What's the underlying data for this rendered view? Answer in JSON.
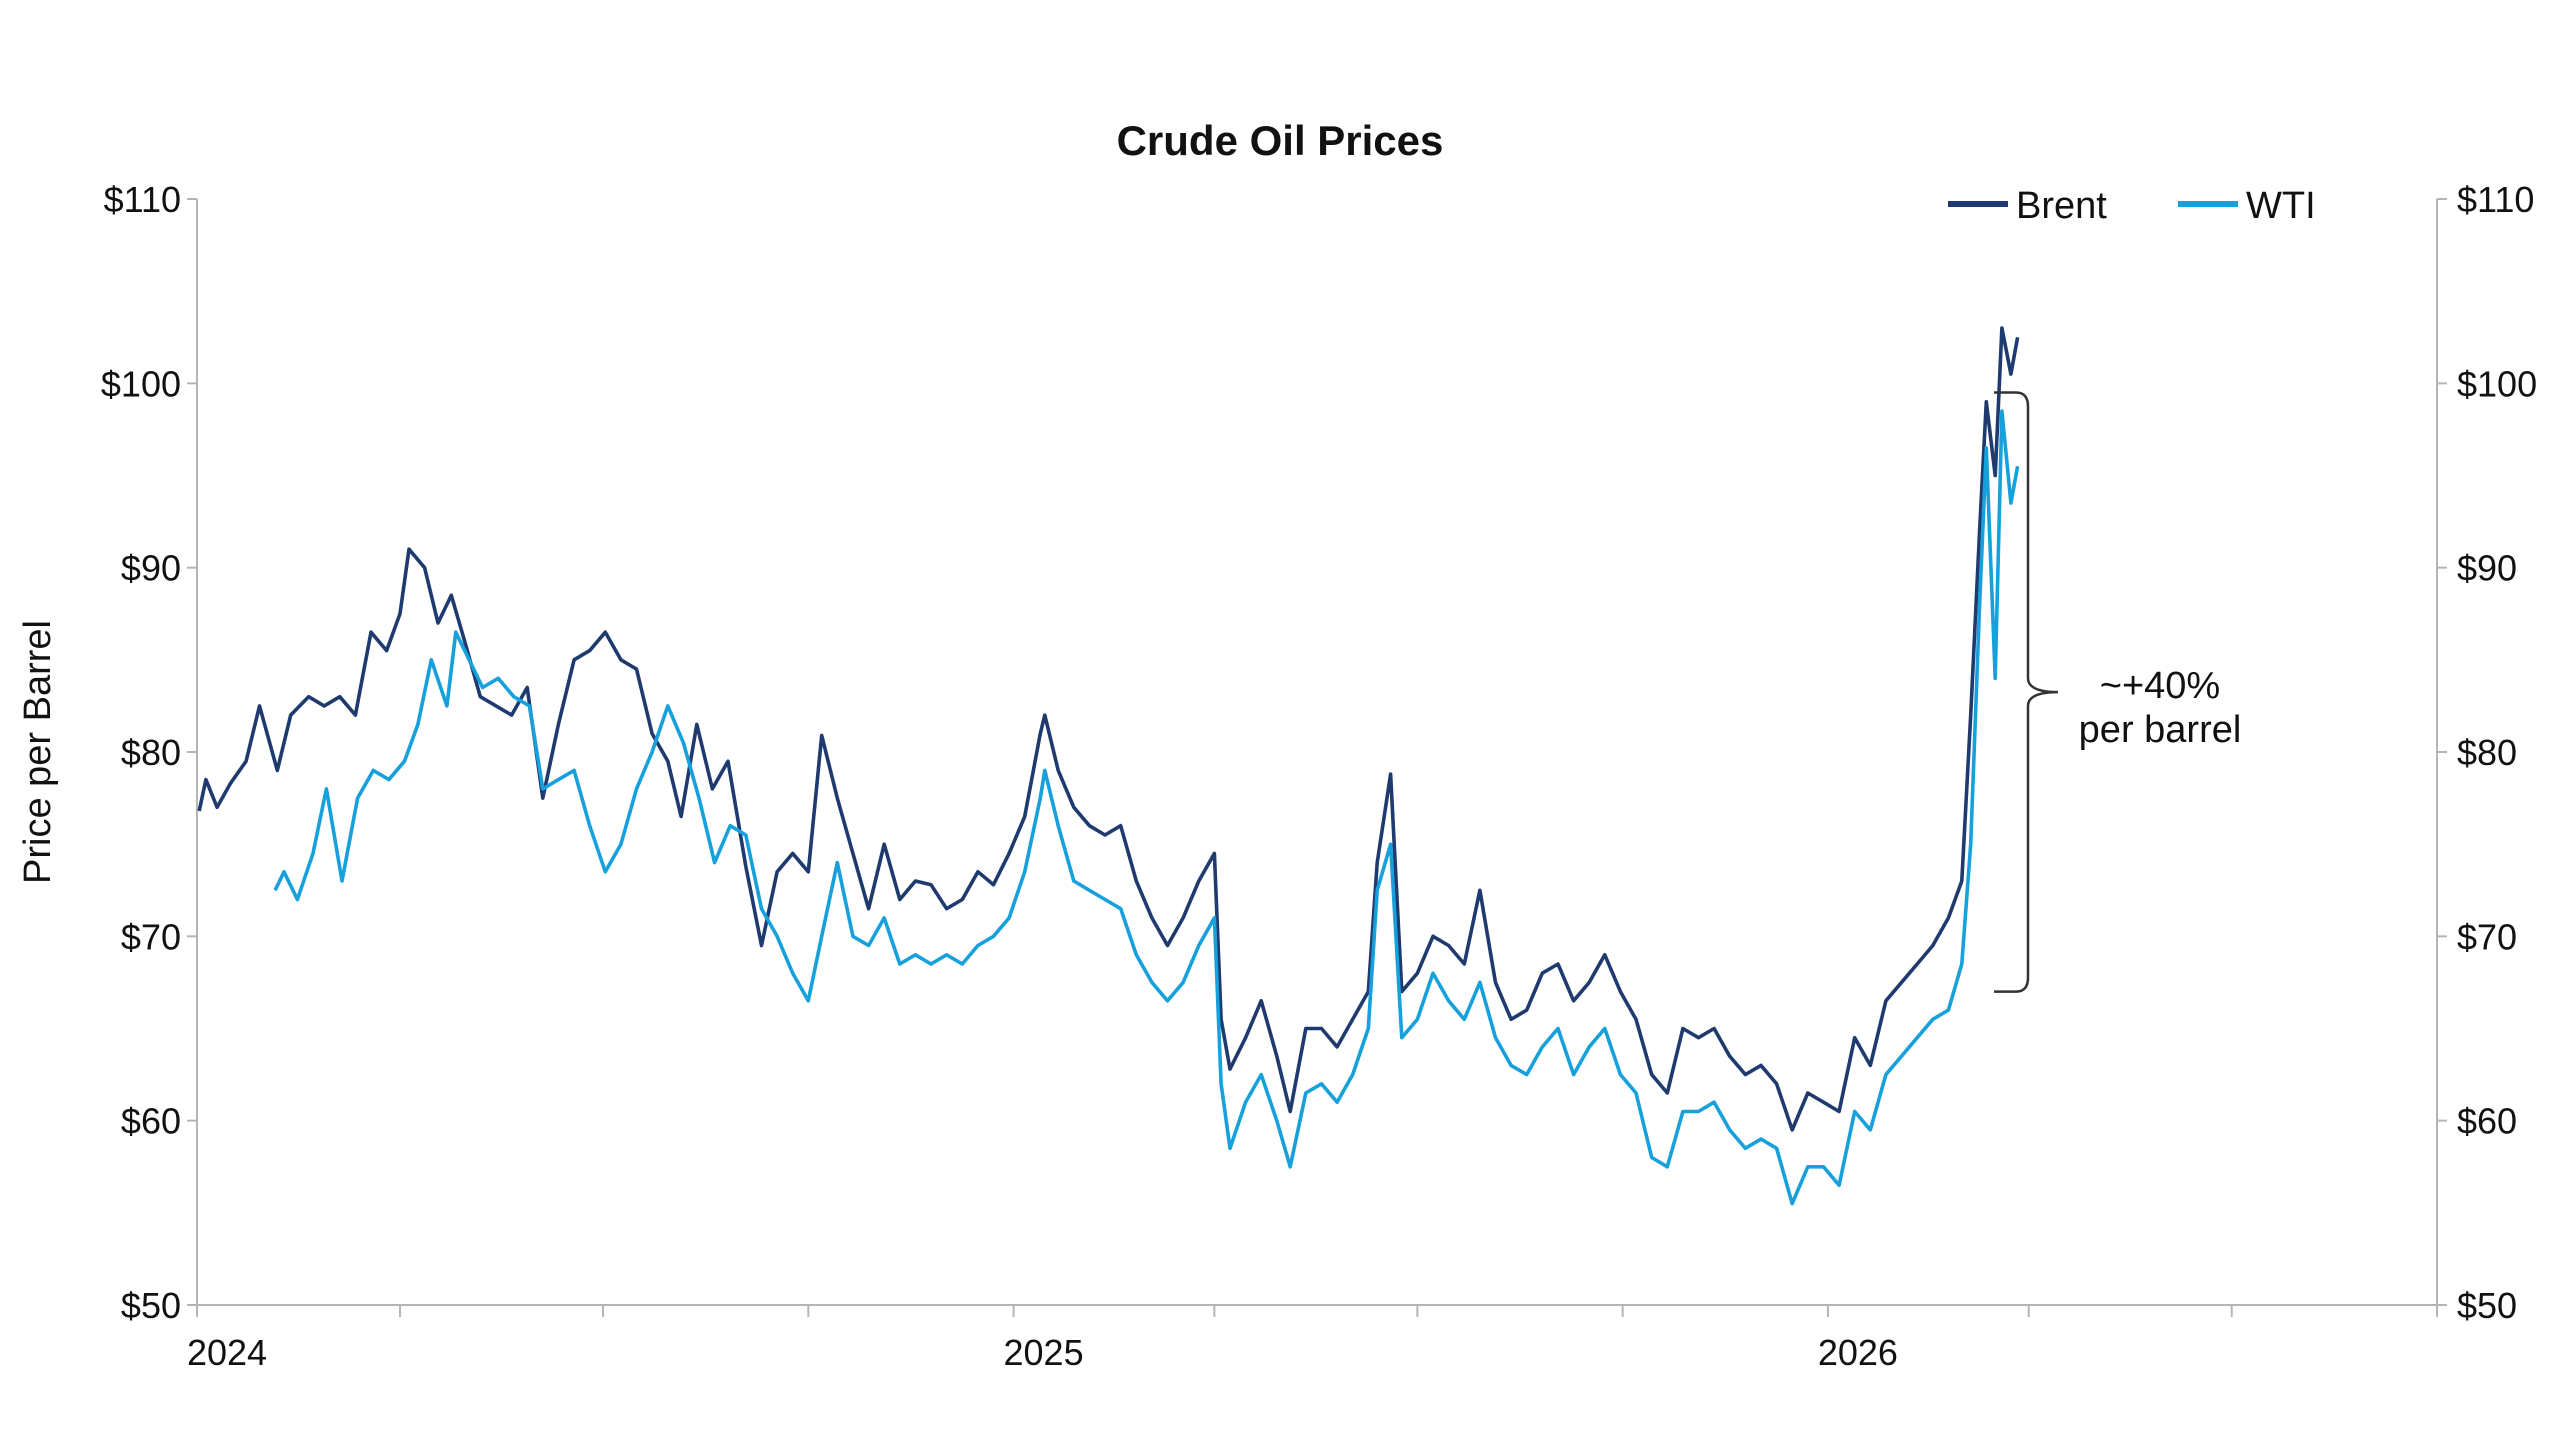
{
  "chart_data": {
    "type": "line",
    "title": "Crude Oil Prices",
    "ylabel": "Price per Barrel",
    "xlabel": "",
    "ylim": [
      50,
      110
    ],
    "y_ticks": [
      50,
      60,
      70,
      80,
      90,
      100,
      110
    ],
    "y_tick_labels": [
      "$50",
      "$60",
      "$70",
      "$80",
      "$90",
      "$100",
      "$110"
    ],
    "xlim": [
      "2024-01-01",
      "2026-10-01"
    ],
    "x_ticks": [
      "2024-01-01",
      "2024-04-01",
      "2024-07-01",
      "2024-10-01",
      "2025-01-01",
      "2025-04-01",
      "2025-07-01",
      "2025-10-01",
      "2026-01-01",
      "2026-04-01",
      "2026-07-01",
      "2026-10-01"
    ],
    "x_tick_labels": [
      {
        "date": "2024-01-01",
        "label": "2024"
      },
      {
        "date": "2025-01-01",
        "label": "2025"
      },
      {
        "date": "2026-01-01",
        "label": "2026"
      }
    ],
    "legend": "top-right",
    "grid": false,
    "series": [
      {
        "name": "Brent",
        "color": "#1f3a6e",
        "points": [
          [
            "2024-01-02",
            76.8
          ],
          [
            "2024-01-05",
            78.5
          ],
          [
            "2024-01-10",
            77.0
          ],
          [
            "2024-01-16",
            78.3
          ],
          [
            "2024-01-23",
            79.5
          ],
          [
            "2024-01-29",
            82.5
          ],
          [
            "2024-02-06",
            79.0
          ],
          [
            "2024-02-12",
            82.0
          ],
          [
            "2024-02-20",
            83.0
          ],
          [
            "2024-02-27",
            82.5
          ],
          [
            "2024-03-05",
            83.0
          ],
          [
            "2024-03-12",
            82.0
          ],
          [
            "2024-03-19",
            86.5
          ],
          [
            "2024-03-26",
            85.5
          ],
          [
            "2024-04-01",
            87.5
          ],
          [
            "2024-04-05",
            91.0
          ],
          [
            "2024-04-12",
            90.0
          ],
          [
            "2024-04-18",
            87.0
          ],
          [
            "2024-04-24",
            88.5
          ],
          [
            "2024-04-30",
            86.0
          ],
          [
            "2024-05-07",
            83.0
          ],
          [
            "2024-05-14",
            82.5
          ],
          [
            "2024-05-21",
            82.0
          ],
          [
            "2024-05-28",
            83.5
          ],
          [
            "2024-06-04",
            77.5
          ],
          [
            "2024-06-11",
            81.5
          ],
          [
            "2024-06-18",
            85.0
          ],
          [
            "2024-06-25",
            85.5
          ],
          [
            "2024-07-02",
            86.5
          ],
          [
            "2024-07-09",
            85.0
          ],
          [
            "2024-07-16",
            84.5
          ],
          [
            "2024-07-23",
            81.0
          ],
          [
            "2024-07-30",
            79.5
          ],
          [
            "2024-08-05",
            76.5
          ],
          [
            "2024-08-12",
            81.5
          ],
          [
            "2024-08-19",
            78.0
          ],
          [
            "2024-08-26",
            79.5
          ],
          [
            "2024-09-03",
            73.8
          ],
          [
            "2024-09-10",
            69.5
          ],
          [
            "2024-09-17",
            73.5
          ],
          [
            "2024-09-24",
            74.5
          ],
          [
            "2024-10-01",
            73.5
          ],
          [
            "2024-10-07",
            80.9
          ],
          [
            "2024-10-14",
            77.5
          ],
          [
            "2024-10-21",
            74.5
          ],
          [
            "2024-10-28",
            71.5
          ],
          [
            "2024-11-04",
            75.0
          ],
          [
            "2024-11-11",
            72.0
          ],
          [
            "2024-11-18",
            73.0
          ],
          [
            "2024-11-25",
            72.8
          ],
          [
            "2024-12-02",
            71.5
          ],
          [
            "2024-12-09",
            72.0
          ],
          [
            "2024-12-16",
            73.5
          ],
          [
            "2024-12-23",
            72.8
          ],
          [
            "2024-12-30",
            74.5
          ],
          [
            "2025-01-06",
            76.5
          ],
          [
            "2025-01-13",
            81.0
          ],
          [
            "2025-01-15",
            82.0
          ],
          [
            "2025-01-21",
            79.0
          ],
          [
            "2025-01-28",
            77.0
          ],
          [
            "2025-02-04",
            76.0
          ],
          [
            "2025-02-11",
            75.5
          ],
          [
            "2025-02-18",
            76.0
          ],
          [
            "2025-02-25",
            73.0
          ],
          [
            "2025-03-04",
            71.0
          ],
          [
            "2025-03-11",
            69.5
          ],
          [
            "2025-03-18",
            71.0
          ],
          [
            "2025-03-25",
            73.0
          ],
          [
            "2025-04-01",
            74.5
          ],
          [
            "2025-04-04",
            65.5
          ],
          [
            "2025-04-08",
            62.8
          ],
          [
            "2025-04-15",
            64.5
          ],
          [
            "2025-04-22",
            66.5
          ],
          [
            "2025-04-29",
            63.5
          ],
          [
            "2025-05-05",
            60.5
          ],
          [
            "2025-05-12",
            65.0
          ],
          [
            "2025-05-19",
            65.0
          ],
          [
            "2025-05-26",
            64.0
          ],
          [
            "2025-06-02",
            65.5
          ],
          [
            "2025-06-09",
            67.0
          ],
          [
            "2025-06-13",
            74.0
          ],
          [
            "2025-06-19",
            78.8
          ],
          [
            "2025-06-24",
            67.0
          ],
          [
            "2025-07-01",
            68.0
          ],
          [
            "2025-07-08",
            70.0
          ],
          [
            "2025-07-15",
            69.5
          ],
          [
            "2025-07-22",
            68.5
          ],
          [
            "2025-07-29",
            72.5
          ],
          [
            "2025-08-05",
            67.5
          ],
          [
            "2025-08-12",
            65.5
          ],
          [
            "2025-08-19",
            66.0
          ],
          [
            "2025-08-26",
            68.0
          ],
          [
            "2025-09-02",
            68.5
          ],
          [
            "2025-09-09",
            66.5
          ],
          [
            "2025-09-16",
            67.5
          ],
          [
            "2025-09-23",
            69.0
          ],
          [
            "2025-09-30",
            67.0
          ],
          [
            "2025-10-07",
            65.5
          ],
          [
            "2025-10-14",
            62.5
          ],
          [
            "2025-10-21",
            61.5
          ],
          [
            "2025-10-28",
            65.0
          ],
          [
            "2025-11-04",
            64.5
          ],
          [
            "2025-11-11",
            65.0
          ],
          [
            "2025-11-18",
            63.5
          ],
          [
            "2025-11-25",
            62.5
          ],
          [
            "2025-12-02",
            63.0
          ],
          [
            "2025-12-09",
            62.0
          ],
          [
            "2025-12-16",
            59.5
          ],
          [
            "2025-12-23",
            61.5
          ],
          [
            "2025-12-30",
            61.0
          ],
          [
            "2026-01-06",
            60.5
          ],
          [
            "2026-01-13",
            64.5
          ],
          [
            "2026-01-20",
            63.0
          ],
          [
            "2026-01-27",
            66.5
          ],
          [
            "2026-02-03",
            67.5
          ],
          [
            "2026-02-10",
            68.5
          ],
          [
            "2026-02-17",
            69.5
          ],
          [
            "2026-02-24",
            71.0
          ],
          [
            "2026-03-02",
            73.0
          ],
          [
            "2026-03-06",
            82.0
          ],
          [
            "2026-03-10",
            92.0
          ],
          [
            "2026-03-13",
            99.0
          ],
          [
            "2026-03-17",
            95.0
          ],
          [
            "2026-03-20",
            103.0
          ],
          [
            "2026-03-24",
            100.5
          ],
          [
            "2026-03-27",
            102.5
          ]
        ]
      },
      {
        "name": "WTI",
        "color": "#16a0dc",
        "points": [
          [
            "2024-02-05",
            72.5
          ],
          [
            "2024-02-09",
            73.5
          ],
          [
            "2024-02-15",
            72.0
          ],
          [
            "2024-02-22",
            74.5
          ],
          [
            "2024-02-28",
            78.0
          ],
          [
            "2024-03-06",
            73.0
          ],
          [
            "2024-03-13",
            77.5
          ],
          [
            "2024-03-20",
            79.0
          ],
          [
            "2024-03-27",
            78.5
          ],
          [
            "2024-04-03",
            79.5
          ],
          [
            "2024-04-09",
            81.5
          ],
          [
            "2024-04-15",
            85.0
          ],
          [
            "2024-04-22",
            82.5
          ],
          [
            "2024-04-26",
            86.5
          ],
          [
            "2024-05-02",
            85.0
          ],
          [
            "2024-05-08",
            83.5
          ],
          [
            "2024-05-15",
            84.0
          ],
          [
            "2024-05-22",
            83.0
          ],
          [
            "2024-05-29",
            82.5
          ],
          [
            "2024-06-04",
            78.0
          ],
          [
            "2024-06-11",
            78.5
          ],
          [
            "2024-06-18",
            79.0
          ],
          [
            "2024-06-25",
            76.0
          ],
          [
            "2024-07-02",
            73.5
          ],
          [
            "2024-07-09",
            75.0
          ],
          [
            "2024-07-16",
            78.0
          ],
          [
            "2024-07-23",
            80.0
          ],
          [
            "2024-07-30",
            82.5
          ],
          [
            "2024-08-06",
            80.5
          ],
          [
            "2024-08-13",
            77.5
          ],
          [
            "2024-08-20",
            74.0
          ],
          [
            "2024-08-27",
            76.0
          ],
          [
            "2024-09-03",
            75.5
          ],
          [
            "2024-09-10",
            71.5
          ],
          [
            "2024-09-17",
            70.0
          ],
          [
            "2024-09-24",
            68.0
          ],
          [
            "2024-10-01",
            66.5
          ],
          [
            "2024-10-07",
            70.0
          ],
          [
            "2024-10-14",
            74.0
          ],
          [
            "2024-10-21",
            70.0
          ],
          [
            "2024-10-28",
            69.5
          ],
          [
            "2024-11-04",
            71.0
          ],
          [
            "2024-11-11",
            68.5
          ],
          [
            "2024-11-18",
            69.0
          ],
          [
            "2024-11-25",
            68.5
          ],
          [
            "2024-12-02",
            69.0
          ],
          [
            "2024-12-09",
            68.5
          ],
          [
            "2024-12-16",
            69.5
          ],
          [
            "2024-12-23",
            70.0
          ],
          [
            "2024-12-30",
            71.0
          ],
          [
            "2025-01-06",
            73.5
          ],
          [
            "2025-01-13",
            77.5
          ],
          [
            "2025-01-15",
            79.0
          ],
          [
            "2025-01-21",
            76.0
          ],
          [
            "2025-01-28",
            73.0
          ],
          [
            "2025-02-04",
            72.5
          ],
          [
            "2025-02-11",
            72.0
          ],
          [
            "2025-02-18",
            71.5
          ],
          [
            "2025-02-25",
            69.0
          ],
          [
            "2025-03-04",
            67.5
          ],
          [
            "2025-03-11",
            66.5
          ],
          [
            "2025-03-18",
            67.5
          ],
          [
            "2025-03-25",
            69.5
          ],
          [
            "2025-04-01",
            71.0
          ],
          [
            "2025-04-04",
            62.0
          ],
          [
            "2025-04-08",
            58.5
          ],
          [
            "2025-04-15",
            61.0
          ],
          [
            "2025-04-22",
            62.5
          ],
          [
            "2025-04-29",
            60.0
          ],
          [
            "2025-05-05",
            57.5
          ],
          [
            "2025-05-12",
            61.5
          ],
          [
            "2025-05-19",
            62.0
          ],
          [
            "2025-05-26",
            61.0
          ],
          [
            "2025-06-02",
            62.5
          ],
          [
            "2025-06-09",
            65.0
          ],
          [
            "2025-06-13",
            72.5
          ],
          [
            "2025-06-19",
            75.0
          ],
          [
            "2025-06-24",
            64.5
          ],
          [
            "2025-07-01",
            65.5
          ],
          [
            "2025-07-08",
            68.0
          ],
          [
            "2025-07-15",
            66.5
          ],
          [
            "2025-07-22",
            65.5
          ],
          [
            "2025-07-29",
            67.5
          ],
          [
            "2025-08-05",
            64.5
          ],
          [
            "2025-08-12",
            63.0
          ],
          [
            "2025-08-19",
            62.5
          ],
          [
            "2025-08-26",
            64.0
          ],
          [
            "2025-09-02",
            65.0
          ],
          [
            "2025-09-09",
            62.5
          ],
          [
            "2025-09-16",
            64.0
          ],
          [
            "2025-09-23",
            65.0
          ],
          [
            "2025-09-30",
            62.5
          ],
          [
            "2025-10-07",
            61.5
          ],
          [
            "2025-10-14",
            58.0
          ],
          [
            "2025-10-21",
            57.5
          ],
          [
            "2025-10-28",
            60.5
          ],
          [
            "2025-11-04",
            60.5
          ],
          [
            "2025-11-11",
            61.0
          ],
          [
            "2025-11-18",
            59.5
          ],
          [
            "2025-11-25",
            58.5
          ],
          [
            "2025-12-02",
            59.0
          ],
          [
            "2025-12-09",
            58.5
          ],
          [
            "2025-12-16",
            55.5
          ],
          [
            "2025-12-23",
            57.5
          ],
          [
            "2025-12-30",
            57.5
          ],
          [
            "2026-01-06",
            56.5
          ],
          [
            "2026-01-13",
            60.5
          ],
          [
            "2026-01-20",
            59.5
          ],
          [
            "2026-01-27",
            62.5
          ],
          [
            "2026-02-03",
            63.5
          ],
          [
            "2026-02-10",
            64.5
          ],
          [
            "2026-02-17",
            65.5
          ],
          [
            "2026-02-24",
            66.0
          ],
          [
            "2026-03-02",
            68.5
          ],
          [
            "2026-03-06",
            75.0
          ],
          [
            "2026-03-10",
            88.0
          ],
          [
            "2026-03-13",
            96.5
          ],
          [
            "2026-03-17",
            84.0
          ],
          [
            "2026-03-20",
            98.5
          ],
          [
            "2026-03-24",
            93.5
          ],
          [
            "2026-03-27",
            95.5
          ]
        ]
      }
    ],
    "annotation": {
      "text_line1": "~+40%",
      "text_line2": "per barrel",
      "from_value": 67,
      "to_value": 99.5
    }
  }
}
